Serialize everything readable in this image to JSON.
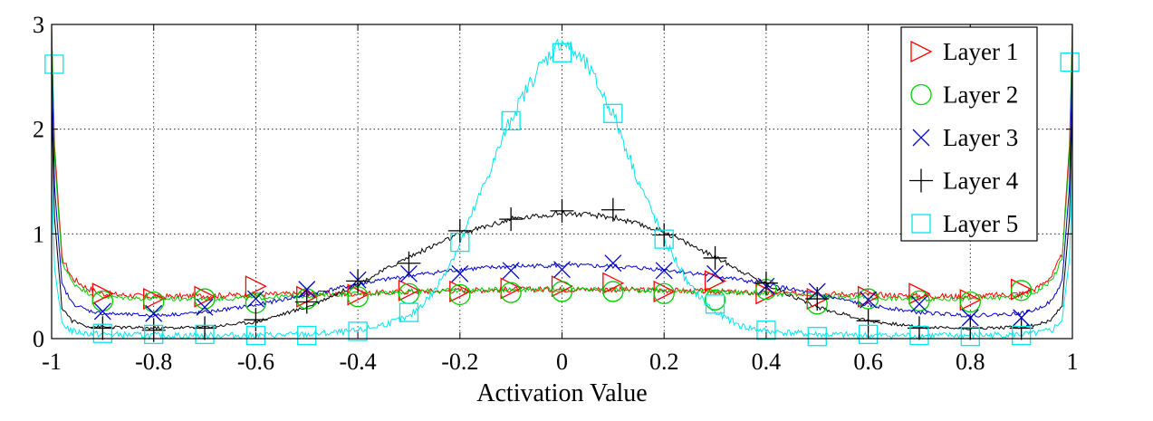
{
  "chart_data": {
    "type": "line",
    "xlabel": "Activation Value",
    "ylabel": "",
    "xlim": [
      -1,
      1
    ],
    "ylim": [
      0,
      3
    ],
    "x_ticks": [
      -1,
      -0.8,
      -0.6,
      -0.4,
      -0.2,
      0,
      0.2,
      0.4,
      0.6,
      0.8,
      1
    ],
    "x_tick_labels": [
      "-1",
      "-0.8",
      "-0.6",
      "-0.4",
      "-0.2",
      "0",
      "0.2",
      "0.4",
      "0.6",
      "0.8",
      "1"
    ],
    "y_ticks": [
      0,
      1,
      2,
      3
    ],
    "y_tick_labels": [
      "0",
      "1",
      "2",
      "3"
    ],
    "grid": true,
    "legend_position": "top-right",
    "series": [
      {
        "name": "Layer 1",
        "color": "#ff0000",
        "marker": "triangle-right",
        "noise": 0.035,
        "curve": [
          [
            -1,
            3.0
          ],
          [
            -0.995,
            1.9
          ],
          [
            -0.98,
            0.78
          ],
          [
            -0.96,
            0.58
          ],
          [
            -0.93,
            0.48
          ],
          [
            -0.9,
            0.43
          ],
          [
            -0.8,
            0.4
          ],
          [
            -0.7,
            0.41
          ],
          [
            -0.6,
            0.42
          ],
          [
            -0.5,
            0.43
          ],
          [
            -0.4,
            0.43
          ],
          [
            -0.3,
            0.45
          ],
          [
            -0.2,
            0.46
          ],
          [
            -0.1,
            0.47
          ],
          [
            0,
            0.47
          ],
          [
            0.1,
            0.47
          ],
          [
            0.2,
            0.46
          ],
          [
            0.3,
            0.45
          ],
          [
            0.4,
            0.43
          ],
          [
            0.5,
            0.43
          ],
          [
            0.6,
            0.42
          ],
          [
            0.7,
            0.41
          ],
          [
            0.8,
            0.4
          ],
          [
            0.9,
            0.43
          ],
          [
            0.93,
            0.48
          ],
          [
            0.96,
            0.6
          ],
          [
            0.98,
            0.8
          ],
          [
            0.995,
            1.9
          ],
          [
            1,
            3.0
          ]
        ],
        "markers": [
          [
            -0.9,
            0.43
          ],
          [
            -0.8,
            0.38
          ],
          [
            -0.7,
            0.4
          ],
          [
            -0.6,
            0.5
          ],
          [
            -0.5,
            0.4
          ],
          [
            -0.4,
            0.42
          ],
          [
            -0.3,
            0.46
          ],
          [
            -0.2,
            0.45
          ],
          [
            -0.1,
            0.48
          ],
          [
            0,
            0.5
          ],
          [
            0.1,
            0.53
          ],
          [
            0.2,
            0.45
          ],
          [
            0.3,
            0.55
          ],
          [
            0.4,
            0.43
          ],
          [
            0.5,
            0.38
          ],
          [
            0.6,
            0.4
          ],
          [
            0.7,
            0.43
          ],
          [
            0.8,
            0.37
          ],
          [
            0.9,
            0.47
          ]
        ]
      },
      {
        "name": "Layer 2",
        "color": "#00cc00",
        "marker": "circle",
        "noise": 0.03,
        "curve": [
          [
            -1,
            3.0
          ],
          [
            -0.995,
            1.8
          ],
          [
            -0.98,
            0.74
          ],
          [
            -0.96,
            0.54
          ],
          [
            -0.93,
            0.44
          ],
          [
            -0.9,
            0.4
          ],
          [
            -0.8,
            0.38
          ],
          [
            -0.7,
            0.38
          ],
          [
            -0.6,
            0.39
          ],
          [
            -0.5,
            0.41
          ],
          [
            -0.4,
            0.43
          ],
          [
            -0.3,
            0.45
          ],
          [
            -0.2,
            0.46
          ],
          [
            -0.1,
            0.47
          ],
          [
            0,
            0.47
          ],
          [
            0.1,
            0.47
          ],
          [
            0.2,
            0.46
          ],
          [
            0.3,
            0.45
          ],
          [
            0.4,
            0.43
          ],
          [
            0.5,
            0.41
          ],
          [
            0.6,
            0.39
          ],
          [
            0.7,
            0.38
          ],
          [
            0.8,
            0.38
          ],
          [
            0.9,
            0.4
          ],
          [
            0.93,
            0.45
          ],
          [
            0.96,
            0.56
          ],
          [
            0.98,
            0.76
          ],
          [
            0.995,
            1.8
          ],
          [
            1,
            3.0
          ]
        ],
        "markers": [
          [
            -0.9,
            0.36
          ],
          [
            -0.8,
            0.35
          ],
          [
            -0.7,
            0.38
          ],
          [
            -0.6,
            0.34
          ],
          [
            -0.5,
            0.38
          ],
          [
            -0.4,
            0.4
          ],
          [
            -0.3,
            0.43
          ],
          [
            -0.2,
            0.42
          ],
          [
            -0.1,
            0.44
          ],
          [
            0,
            0.45
          ],
          [
            0.1,
            0.45
          ],
          [
            0.2,
            0.43
          ],
          [
            0.3,
            0.37
          ],
          [
            0.4,
            0.47
          ],
          [
            0.5,
            0.33
          ],
          [
            0.6,
            0.38
          ],
          [
            0.7,
            0.36
          ],
          [
            0.8,
            0.35
          ],
          [
            0.9,
            0.46
          ]
        ]
      },
      {
        "name": "Layer 3",
        "color": "#0000cc",
        "marker": "x",
        "noise": 0.025,
        "curve": [
          [
            -1,
            2.8
          ],
          [
            -0.995,
            1.5
          ],
          [
            -0.98,
            0.52
          ],
          [
            -0.96,
            0.34
          ],
          [
            -0.93,
            0.27
          ],
          [
            -0.9,
            0.24
          ],
          [
            -0.8,
            0.22
          ],
          [
            -0.7,
            0.25
          ],
          [
            -0.6,
            0.32
          ],
          [
            -0.5,
            0.42
          ],
          [
            -0.4,
            0.52
          ],
          [
            -0.3,
            0.6
          ],
          [
            -0.2,
            0.66
          ],
          [
            -0.1,
            0.69
          ],
          [
            0,
            0.7
          ],
          [
            0.1,
            0.69
          ],
          [
            0.2,
            0.66
          ],
          [
            0.3,
            0.6
          ],
          [
            0.4,
            0.52
          ],
          [
            0.5,
            0.42
          ],
          [
            0.6,
            0.32
          ],
          [
            0.7,
            0.25
          ],
          [
            0.8,
            0.22
          ],
          [
            0.9,
            0.24
          ],
          [
            0.93,
            0.28
          ],
          [
            0.96,
            0.36
          ],
          [
            0.98,
            0.55
          ],
          [
            0.995,
            1.5
          ],
          [
            1,
            2.8
          ]
        ],
        "markers": [
          [
            -0.9,
            0.26
          ],
          [
            -0.8,
            0.24
          ],
          [
            -0.7,
            0.3
          ],
          [
            -0.6,
            0.38
          ],
          [
            -0.5,
            0.47
          ],
          [
            -0.4,
            0.56
          ],
          [
            -0.3,
            0.62
          ],
          [
            -0.2,
            0.62
          ],
          [
            -0.1,
            0.65
          ],
          [
            0,
            0.66
          ],
          [
            0.1,
            0.72
          ],
          [
            0.2,
            0.65
          ],
          [
            0.3,
            0.62
          ],
          [
            0.4,
            0.5
          ],
          [
            0.5,
            0.45
          ],
          [
            0.6,
            0.37
          ],
          [
            0.7,
            0.33
          ],
          [
            0.8,
            0.2
          ],
          [
            0.9,
            0.2
          ]
        ]
      },
      {
        "name": "Layer 4",
        "color": "#000000",
        "marker": "plus",
        "noise": 0.025,
        "curve": [
          [
            -1,
            2.3
          ],
          [
            -0.995,
            1.2
          ],
          [
            -0.98,
            0.3
          ],
          [
            -0.96,
            0.17
          ],
          [
            -0.93,
            0.12
          ],
          [
            -0.9,
            0.11
          ],
          [
            -0.8,
            0.1
          ],
          [
            -0.7,
            0.11
          ],
          [
            -0.6,
            0.16
          ],
          [
            -0.5,
            0.3
          ],
          [
            -0.4,
            0.52
          ],
          [
            -0.3,
            0.78
          ],
          [
            -0.2,
            1.0
          ],
          [
            -0.1,
            1.14
          ],
          [
            0,
            1.2
          ],
          [
            0.1,
            1.16
          ],
          [
            0.2,
            1.02
          ],
          [
            0.3,
            0.78
          ],
          [
            0.4,
            0.52
          ],
          [
            0.5,
            0.3
          ],
          [
            0.6,
            0.17
          ],
          [
            0.7,
            0.11
          ],
          [
            0.8,
            0.1
          ],
          [
            0.9,
            0.11
          ],
          [
            0.93,
            0.13
          ],
          [
            0.96,
            0.18
          ],
          [
            0.98,
            0.32
          ],
          [
            0.995,
            1.2
          ],
          [
            1,
            2.3
          ]
        ],
        "markers": [
          [
            -0.9,
            0.1
          ],
          [
            -0.8,
            0.08
          ],
          [
            -0.7,
            0.1
          ],
          [
            -0.6,
            0.18
          ],
          [
            -0.5,
            0.35
          ],
          [
            -0.4,
            0.55
          ],
          [
            -0.3,
            0.72
          ],
          [
            -0.2,
            1.03
          ],
          [
            -0.1,
            1.14
          ],
          [
            0,
            1.22
          ],
          [
            0.1,
            1.23
          ],
          [
            0.2,
            0.99
          ],
          [
            0.3,
            0.77
          ],
          [
            0.4,
            0.53
          ],
          [
            0.5,
            0.38
          ],
          [
            0.6,
            0.17
          ],
          [
            0.7,
            0.1
          ],
          [
            0.8,
            0.1
          ],
          [
            0.9,
            0.1
          ]
        ]
      },
      {
        "name": "Layer 5",
        "color": "#00e5ee",
        "marker": "square",
        "noise": 0.05,
        "curve": [
          [
            -1,
            1.7
          ],
          [
            -0.995,
            0.7
          ],
          [
            -0.98,
            0.15
          ],
          [
            -0.96,
            0.07
          ],
          [
            -0.93,
            0.05
          ],
          [
            -0.9,
            0.04
          ],
          [
            -0.8,
            0.03
          ],
          [
            -0.7,
            0.03
          ],
          [
            -0.6,
            0.03
          ],
          [
            -0.5,
            0.04
          ],
          [
            -0.4,
            0.07
          ],
          [
            -0.3,
            0.2
          ],
          [
            -0.25,
            0.45
          ],
          [
            -0.2,
            0.9
          ],
          [
            -0.15,
            1.5
          ],
          [
            -0.1,
            2.1
          ],
          [
            -0.05,
            2.55
          ],
          [
            0,
            2.85
          ],
          [
            0.05,
            2.6
          ],
          [
            0.1,
            2.15
          ],
          [
            0.15,
            1.5
          ],
          [
            0.2,
            0.95
          ],
          [
            0.25,
            0.5
          ],
          [
            0.3,
            0.25
          ],
          [
            0.35,
            0.12
          ],
          [
            0.4,
            0.07
          ],
          [
            0.5,
            0.04
          ],
          [
            0.6,
            0.03
          ],
          [
            0.7,
            0.03
          ],
          [
            0.8,
            0.03
          ],
          [
            0.9,
            0.04
          ],
          [
            0.93,
            0.05
          ],
          [
            0.96,
            0.08
          ],
          [
            0.98,
            0.18
          ],
          [
            0.995,
            0.8
          ],
          [
            1,
            1.7
          ]
        ],
        "markers": [
          [
            -0.995,
            2.62
          ],
          [
            -0.9,
            0.05
          ],
          [
            -0.8,
            0.04
          ],
          [
            -0.7,
            0.04
          ],
          [
            -0.6,
            0.03
          ],
          [
            -0.5,
            0.03
          ],
          [
            -0.4,
            0.07
          ],
          [
            -0.3,
            0.25
          ],
          [
            -0.2,
            0.92
          ],
          [
            -0.1,
            2.08
          ],
          [
            0,
            2.73
          ],
          [
            0.1,
            2.15
          ],
          [
            0.2,
            0.95
          ],
          [
            0.3,
            0.33
          ],
          [
            0.4,
            0.08
          ],
          [
            0.5,
            0.02
          ],
          [
            0.6,
            0.04
          ],
          [
            0.7,
            0.03
          ],
          [
            0.8,
            0.02
          ],
          [
            0.9,
            0.03
          ],
          [
            0.995,
            2.64
          ]
        ]
      }
    ]
  }
}
